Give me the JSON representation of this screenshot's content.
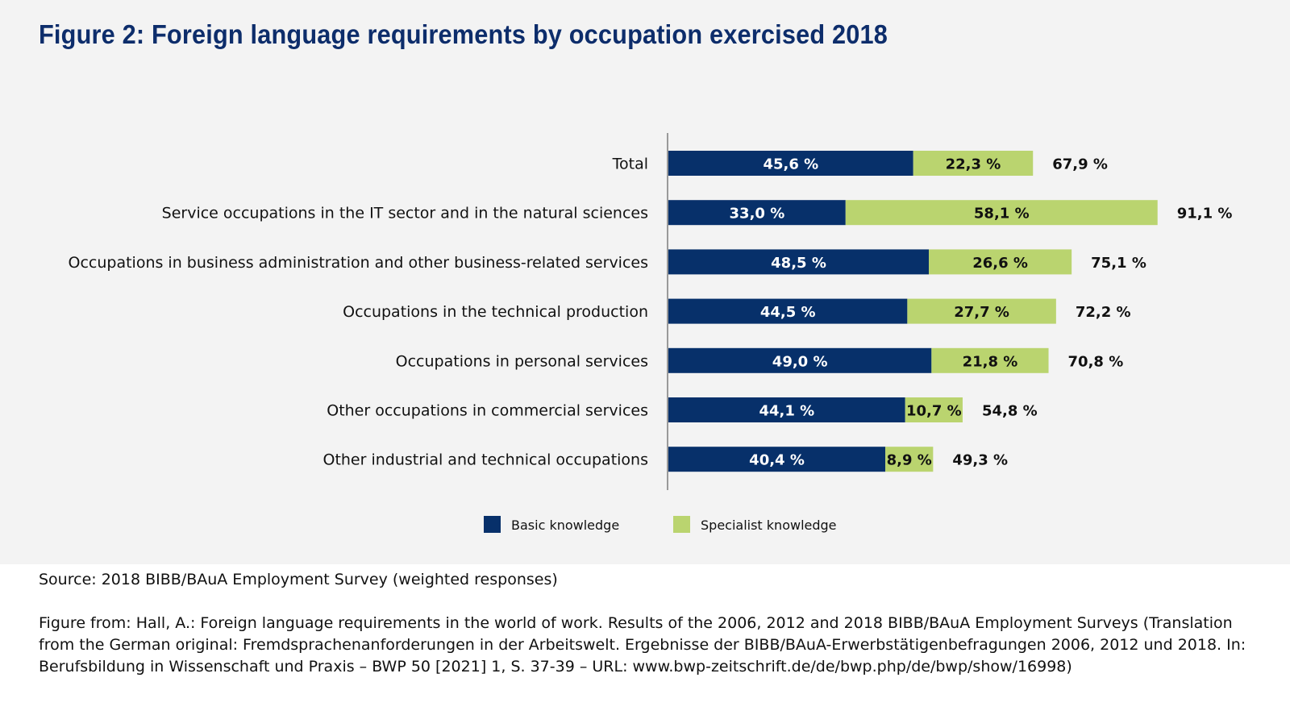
{
  "title": "Figure 2: Foreign language requirements by occupation exercised 2018",
  "chart_data": {
    "type": "bar",
    "orientation": "horizontal",
    "stacked": true,
    "title": "Figure 2: Foreign language requirements by occupation exercised 2018",
    "xlabel": "",
    "ylabel": "",
    "xlim": [
      0,
      100
    ],
    "grid": false,
    "legend_position": "bottom",
    "categories": [
      "Total",
      "Service occupations in the IT sector and in the natural sciences",
      "Occupations in business administration and other business-related services",
      "Occupations in the technical production",
      "Occupations in personal services",
      "Other occupations in commercial services",
      "Other industrial and technical occupations"
    ],
    "series": [
      {
        "name": "Basic knowledge",
        "color": "#07306a",
        "label_color": "#ffffff",
        "values": [
          45.6,
          33.0,
          48.5,
          44.5,
          49.0,
          44.1,
          40.4
        ],
        "labels": [
          "45,6 %",
          "33,0 %",
          "48,5 %",
          "44,5 %",
          "49,0 %",
          "44,1 %",
          "40,4 %"
        ]
      },
      {
        "name": "Specialist knowledge",
        "color": "#bad46f",
        "label_color": "#111111",
        "values": [
          22.3,
          58.1,
          26.6,
          27.7,
          21.8,
          10.7,
          8.9
        ],
        "labels": [
          "22,3 %",
          "58,1 %",
          "26,6 %",
          "27,7 %",
          "21,8 %",
          "10,7 %",
          "8,9 %"
        ]
      }
    ],
    "totals": [
      67.9,
      91.1,
      75.1,
      72.2,
      70.8,
      54.8,
      49.3
    ],
    "total_labels": [
      "67,9 %",
      "91,1 %",
      "75,1 %",
      "72,2 %",
      "70,8 %",
      "54,8 %",
      "49,3 %"
    ]
  },
  "footer": {
    "source": "Source: 2018 BIBB/BAuA Employment Survey (weighted responses)",
    "citation": "Figure from: Hall, A.: Foreign language requirements in the world of work. Results of the 2006, 2012 and 2018 BIBB/BAuA Employment Surveys (Translation from the German original: Fremdsprachenanforderungen in der Arbeitswelt. Ergebnisse der BIBB/BAuA-Erwerbstätigenbefragungen 2006, 2012 und 2018. In: Berufsbildung in Wissenschaft und Praxis – BWP 50 [2021] 1, S. 37-39 – URL: www.bwp-zeitschrift.de/de/bwp.php/de/bwp/show/16998)"
  }
}
